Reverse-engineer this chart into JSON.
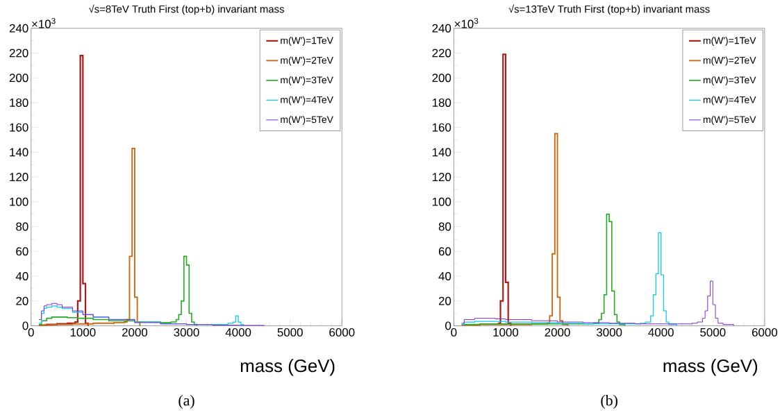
{
  "chart_data": [
    {
      "type": "step",
      "title": "√s=8TeV Truth First (top+b) invariant mass",
      "xlabel": "mass (GeV)",
      "xlim": [
        0,
        6000
      ],
      "xticks": [
        0,
        1000,
        2000,
        3000,
        4000,
        5000,
        6000
      ],
      "ylim": [
        0,
        240
      ],
      "yticks": [
        0,
        20,
        40,
        60,
        80,
        100,
        120,
        140,
        160,
        180,
        200,
        220,
        240
      ],
      "legend": "top right",
      "annotations": [
        "×10$^{3}$",
        "(a)"
      ],
      "series": [
        {
          "name": "m(W')=1TeV",
          "color": "#b01818",
          "x": [
            150,
            300,
            500,
            700,
            850,
            900,
            950,
            1000,
            1050,
            1100
          ],
          "values": [
            0.5,
            1,
            1.5,
            2,
            3,
            20,
            218,
            34,
            2,
            0
          ]
        },
        {
          "name": "m(W')=2TeV",
          "color": "#cc6a14",
          "x": [
            150,
            400,
            800,
            1200,
            1600,
            1800,
            1850,
            1900,
            1950,
            2000,
            2050,
            2100
          ],
          "values": [
            0.5,
            1,
            1.5,
            2,
            2.5,
            3,
            5,
            56,
            143,
            23,
            3,
            0
          ]
        },
        {
          "name": "m(W')=3TeV",
          "color": "#22aa22",
          "x": [
            150,
            200,
            300,
            400,
            500,
            700,
            900,
            1200,
            1500,
            2000,
            2500,
            2700,
            2800,
            2850,
            2900,
            2950,
            3000,
            3050,
            3100,
            3150,
            3200
          ],
          "values": [
            1,
            4,
            6,
            7,
            7,
            6.5,
            6,
            5,
            4,
            3,
            2.5,
            3,
            5,
            9,
            20,
            56,
            49,
            10,
            3,
            1,
            0
          ]
        },
        {
          "name": "m(W')=4TeV",
          "color": "#10c8f0",
          "x": [
            150,
            200,
            250,
            300,
            400,
            500,
            600,
            800,
            1000,
            1200,
            1500,
            2000,
            2500,
            3000,
            3500,
            3800,
            3900,
            3950,
            4000,
            4050,
            4100
          ],
          "values": [
            2,
            10,
            14,
            15,
            16,
            15,
            14,
            11,
            9,
            7,
            5,
            3,
            1.5,
            1,
            1,
            2,
            3,
            8,
            3,
            1,
            0
          ]
        },
        {
          "name": "m(W')=5TeV",
          "color": "#7a2ae0",
          "x": [
            150,
            200,
            250,
            300,
            400,
            500,
            600,
            800,
            1000,
            1200,
            1500,
            2000,
            2500,
            3000,
            3500,
            4000,
            4500
          ],
          "values": [
            5,
            12,
            16,
            17,
            18,
            17,
            15,
            12,
            9,
            7,
            5,
            2.5,
            1.5,
            1,
            0.5,
            0.3,
            0
          ]
        }
      ]
    },
    {
      "type": "step",
      "title": "√s=13TeV Truth First (top+b) invariant mass",
      "xlabel": "mass (GeV)",
      "xlim": [
        0,
        6000
      ],
      "xticks": [
        0,
        1000,
        2000,
        3000,
        4000,
        5000,
        6000
      ],
      "ylim": [
        0,
        240
      ],
      "yticks": [
        0,
        20,
        40,
        60,
        80,
        100,
        120,
        140,
        160,
        180,
        200,
        220,
        240
      ],
      "legend": "top right",
      "annotations": [
        "×10$^{3}$",
        "(b)"
      ],
      "series": [
        {
          "name": "m(W')=1TeV",
          "color": "#b01818",
          "x": [
            850,
            900,
            950,
            1000,
            1050,
            1100
          ],
          "values": [
            2,
            20,
            219,
            35,
            2,
            0
          ]
        },
        {
          "name": "m(W')=2TeV",
          "color": "#cc6a14",
          "x": [
            150,
            500,
            1000,
            1500,
            1800,
            1850,
            1900,
            1950,
            2000,
            2050,
            2100,
            2200
          ],
          "values": [
            0.5,
            1,
            1,
            1.5,
            2,
            8,
            58,
            155,
            23,
            4,
            1,
            0
          ]
        },
        {
          "name": "m(W')=3TeV",
          "color": "#22aa22",
          "x": [
            150,
            500,
            1000,
            1500,
            2000,
            2500,
            2700,
            2800,
            2850,
            2900,
            2950,
            3000,
            3050,
            3100,
            3150,
            3200,
            3300
          ],
          "values": [
            1,
            1.5,
            1.5,
            1.5,
            1.5,
            1.5,
            2,
            5,
            10,
            25,
            90,
            84,
            28,
            9,
            3,
            1,
            0
          ]
        },
        {
          "name": "m(W')=4TeV",
          "color": "#10c8f0",
          "x": [
            150,
            200,
            400,
            600,
            1000,
            1500,
            2000,
            2500,
            3000,
            3400,
            3600,
            3700,
            3800,
            3850,
            3900,
            3950,
            4000,
            4050,
            4100,
            4150,
            4300
          ],
          "values": [
            1,
            3,
            3.5,
            3.5,
            3,
            2.5,
            2,
            1.5,
            1.5,
            1.5,
            2,
            3,
            8,
            25,
            42,
            75,
            41,
            12,
            3,
            1,
            0
          ]
        },
        {
          "name": "m(W')=5TeV",
          "color": "#7a2ae0",
          "x": [
            150,
            200,
            400,
            600,
            800,
            1000,
            1500,
            2000,
            2500,
            3000,
            3500,
            4000,
            4400,
            4600,
            4700,
            4800,
            4850,
            4900,
            4950,
            5000,
            5050,
            5100,
            5200,
            5400
          ],
          "values": [
            2,
            5,
            6,
            6,
            5.5,
            5,
            4,
            3,
            2.5,
            2,
            1.5,
            1.5,
            1.5,
            2,
            3,
            6,
            12,
            24,
            36,
            17,
            6,
            2,
            1,
            0
          ]
        }
      ]
    }
  ]
}
